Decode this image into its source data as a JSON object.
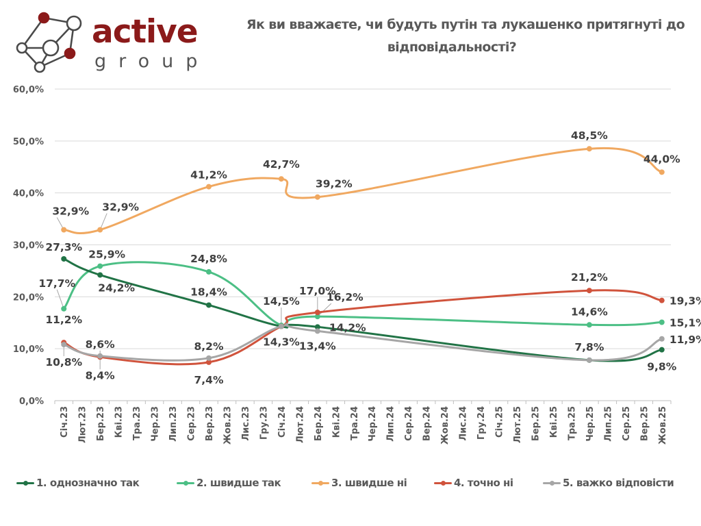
{
  "brand": {
    "name_top": "active",
    "name_bottom": "group",
    "colors": {
      "accent": "#8b1a1a",
      "secondary": "#555555"
    }
  },
  "chart_data": {
    "type": "line",
    "title": "Як ви вважаєте, чи будуть путін та лукашенко притягнуті до відповідальності?",
    "title_lines": [
      "Як ви вважаєте, чи будуть путін та лукашенко притягнуті до",
      "відповідальності?"
    ],
    "xlabel": "",
    "ylabel": "",
    "ylim": [
      0,
      60
    ],
    "y_ticks": [
      0,
      10,
      20,
      30,
      40,
      50,
      60
    ],
    "y_tick_labels": [
      "0,0%",
      "10,0%",
      "20,0%",
      "30,0%",
      "40,0%",
      "50,0%",
      "60,0%"
    ],
    "grid": true,
    "legend_position": "bottom",
    "categories": [
      "Січ.23",
      "Лют.23",
      "Бер.23",
      "Кві.23",
      "Тра.23",
      "Чер.23",
      "Лип.23",
      "Сер.23",
      "Вер.23",
      "Жов.23",
      "Лис.23",
      "Гру.23",
      "Січ.24",
      "Лют.24",
      "Бер.24",
      "Кві.24",
      "Тра.24",
      "Чер.24",
      "Лип.24",
      "Сер.24",
      "Вер.24",
      "Жов.24",
      "Лис.24",
      "Гру.24",
      "Січ.25",
      "Лют.25",
      "Бер.25",
      "Кві.25",
      "Тра.25",
      "Чер.25",
      "Лип.25",
      "Сер.25",
      "Вер.25",
      "Жов.25"
    ],
    "series": [
      {
        "name": "1. однозначно так",
        "color": "#217346",
        "points": [
          {
            "x": "Січ.23",
            "y": 27.3,
            "label": "27,3%"
          },
          {
            "x": "Бер.23",
            "y": 24.2,
            "label": "24,2%"
          },
          {
            "x": "Вер.23",
            "y": 18.4,
            "label": "18,4%"
          },
          {
            "x": "Січ.24",
            "y": 14.3,
            "label": "14,3%"
          },
          {
            "x": "Бер.24",
            "y": 14.2,
            "label": "14,2%"
          },
          {
            "x": "Чер.25",
            "y": 7.8,
            "label": ""
          },
          {
            "x": "Жов.25",
            "y": 9.8,
            "label": "9,8%"
          }
        ]
      },
      {
        "name": "2. швидше так",
        "color": "#4cbf85",
        "points": [
          {
            "x": "Січ.23",
            "y": 17.7,
            "label": "17,7%"
          },
          {
            "x": "Бер.23",
            "y": 25.9,
            "label": "25,9%"
          },
          {
            "x": "Вер.23",
            "y": 24.8,
            "label": "24,8%"
          },
          {
            "x": "Січ.24",
            "y": 14.5,
            "label": "14,5%"
          },
          {
            "x": "Бер.24",
            "y": 16.2,
            "label": "16,2%"
          },
          {
            "x": "Чер.25",
            "y": 14.6,
            "label": "14,6%"
          },
          {
            "x": "Жов.25",
            "y": 15.1,
            "label": "15,1%"
          }
        ]
      },
      {
        "name": "3. швидше ні",
        "color": "#f0a860",
        "points": [
          {
            "x": "Січ.23",
            "y": 32.9,
            "label": "32,9%"
          },
          {
            "x": "Бер.23",
            "y": 32.9,
            "label": "32,9%"
          },
          {
            "x": "Вер.23",
            "y": 41.2,
            "label": "41,2%"
          },
          {
            "x": "Січ.24",
            "y": 42.7,
            "label": "42,7%"
          },
          {
            "x": "Бер.24",
            "y": 39.2,
            "label": "39,2%"
          },
          {
            "x": "Чер.25",
            "y": 48.5,
            "label": "48,5%"
          },
          {
            "x": "Жов.25",
            "y": 44.0,
            "label": "44,0%"
          }
        ]
      },
      {
        "name": "4. точно ні",
        "color": "#d0533c",
        "points": [
          {
            "x": "Січ.23",
            "y": 11.2,
            "label": "11,2%"
          },
          {
            "x": "Бер.23",
            "y": 8.4,
            "label": "8,4%"
          },
          {
            "x": "Вер.23",
            "y": 7.4,
            "label": "7,4%"
          },
          {
            "x": "Січ.24",
            "y": 14.3,
            "label": ""
          },
          {
            "x": "Бер.24",
            "y": 17.0,
            "label": "17,0%"
          },
          {
            "x": "Чер.25",
            "y": 21.2,
            "label": "21,2%"
          },
          {
            "x": "Жов.25",
            "y": 19.3,
            "label": "19,3%"
          }
        ]
      },
      {
        "name": "5. важко відповісти",
        "color": "#a6a6a6",
        "points": [
          {
            "x": "Січ.23",
            "y": 10.8,
            "label": "10,8%"
          },
          {
            "x": "Бер.23",
            "y": 8.6,
            "label": "8,6%"
          },
          {
            "x": "Вер.23",
            "y": 8.2,
            "label": "8,2%"
          },
          {
            "x": "Січ.24",
            "y": 14.3,
            "label": ""
          },
          {
            "x": "Бер.24",
            "y": 13.4,
            "label": "13,4%"
          },
          {
            "x": "Чер.25",
            "y": 7.8,
            "label": "7,8%"
          },
          {
            "x": "Жов.25",
            "y": 11.9,
            "label": "11,9%"
          }
        ]
      }
    ]
  }
}
